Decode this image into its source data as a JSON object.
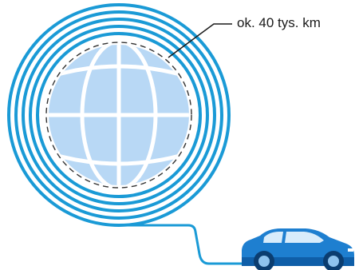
{
  "illustration": {
    "callout_label": "ok. 40 tys. km",
    "icons": [
      "globe-icon",
      "car-icon"
    ],
    "colors": {
      "cable": "#1a9ad6",
      "globe_fill": "#b8d8f5",
      "globe_lines": "#ffffff",
      "car_body": "#1e7fd0",
      "car_dark": "#0f5ea8",
      "dashed_outline": "#333333",
      "text": "#1a1a1a"
    }
  }
}
